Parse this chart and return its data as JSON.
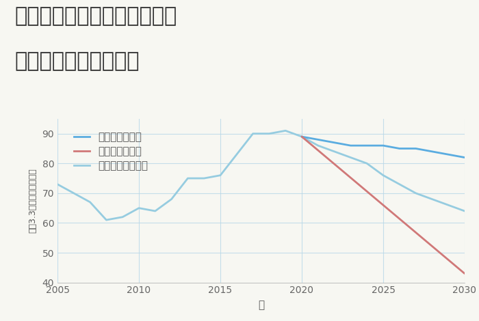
{
  "title_line1": "大阪府大阪市西成区花園北の",
  "title_line2": "中古戸建ての価格推移",
  "xlabel": "年",
  "ylabel": "坪（3.3㎡）単価（万円）",
  "background_color": "#f7f7f2",
  "plot_background": "#f7f7f2",
  "grid_color": "#b8d8e8",
  "ylim": [
    40,
    95
  ],
  "yticks": [
    40,
    50,
    60,
    70,
    80,
    90
  ],
  "xlim": [
    2005,
    2030
  ],
  "xticks": [
    2005,
    2010,
    2015,
    2020,
    2025,
    2030
  ],
  "historical_years": [
    2005,
    2006,
    2007,
    2008,
    2009,
    2010,
    2011,
    2012,
    2013,
    2014,
    2015,
    2016,
    2017,
    2018,
    2019,
    2020
  ],
  "historical_values": [
    73,
    70,
    67,
    61,
    62,
    65,
    64,
    68,
    75,
    75,
    76,
    83,
    90,
    90,
    91,
    89
  ],
  "good_years": [
    2020,
    2021,
    2022,
    2023,
    2024,
    2025,
    2026,
    2027,
    2028,
    2029,
    2030
  ],
  "good_values": [
    89,
    88,
    87,
    86,
    86,
    86,
    85,
    85,
    84,
    83,
    82
  ],
  "bad_years": [
    2020,
    2025,
    2030
  ],
  "bad_values": [
    89,
    66,
    43
  ],
  "normal_years": [
    2020,
    2021,
    2022,
    2023,
    2024,
    2025,
    2026,
    2027,
    2028,
    2029,
    2030
  ],
  "normal_values": [
    89,
    86,
    84,
    82,
    80,
    76,
    73,
    70,
    68,
    66,
    64
  ],
  "good_color": "#5aace0",
  "bad_color": "#d07878",
  "normal_color": "#96cce0",
  "historical_color": "#96cce0",
  "legend_labels": [
    "グッドシナリオ",
    "バッドシナリオ",
    "ノーマルシナリオ"
  ],
  "legend_colors": [
    "#5aace0",
    "#d07878",
    "#96cce0"
  ],
  "title_fontsize": 22,
  "label_fontsize": 11,
  "tick_fontsize": 10,
  "legend_fontsize": 11
}
